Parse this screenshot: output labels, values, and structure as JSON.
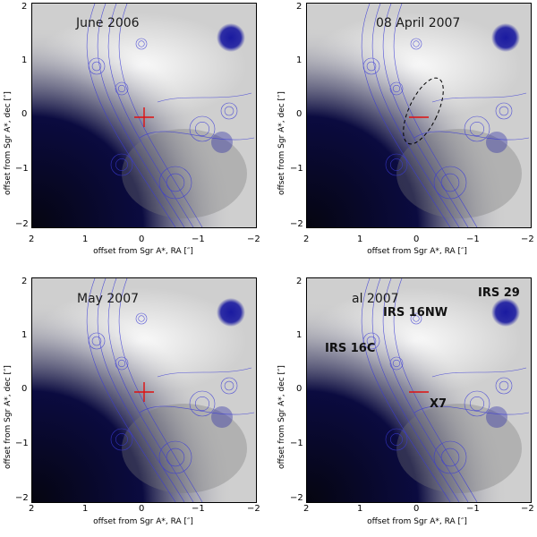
{
  "figure": {
    "panels": [
      {
        "id": "p1",
        "title": "June 2006",
        "xlabel": "offset from Sgr A*, RA [″]",
        "ylabel": "offset from Sgr A*, dec [″]",
        "xticks": [
          "2",
          "1",
          "0",
          "−1",
          "−2"
        ],
        "yticks": [
          "−2",
          "−1",
          "0",
          "1",
          "2"
        ],
        "labels": [],
        "ellipse": false
      },
      {
        "id": "p2",
        "title": "08 April 2007",
        "xlabel": "offset from Sgr A*, RA [″]",
        "ylabel": "offset from Sgr A*, dec [″]",
        "xticks": [
          "2",
          "1",
          "0",
          "−1",
          "−2"
        ],
        "yticks": [
          "−2",
          "−1",
          "0",
          "1",
          "2"
        ],
        "labels": [],
        "ellipse": true
      },
      {
        "id": "p3",
        "title": "May 2007",
        "xlabel": "offset from Sgr A*, RA [″]",
        "ylabel": "offset from Sgr A*, dec [″]",
        "xticks": [
          "2",
          "1",
          "0",
          "−1",
          "−2"
        ],
        "yticks": [
          "−2",
          "−1",
          "0",
          "1",
          "2"
        ],
        "labels": [],
        "ellipse": false
      },
      {
        "id": "p4",
        "title": "al 2007",
        "xlabel": "offset from Sgr A*, RA [″]",
        "ylabel": "offset from Sgr A*, dec [″]",
        "xticks": [
          "2",
          "1",
          "0",
          "−1",
          "−2"
        ],
        "yticks": [
          "−2",
          "−1",
          "0",
          "1",
          "2"
        ],
        "labels": [
          "IRS 29",
          "IRS 16NW",
          "IRS 16C",
          "X7"
        ],
        "ellipse": false
      }
    ],
    "colors": {
      "contour": "#3b3bd6",
      "marker": "#e01010",
      "blob": "#1a1aa0",
      "background": "#cfcfcf"
    }
  }
}
